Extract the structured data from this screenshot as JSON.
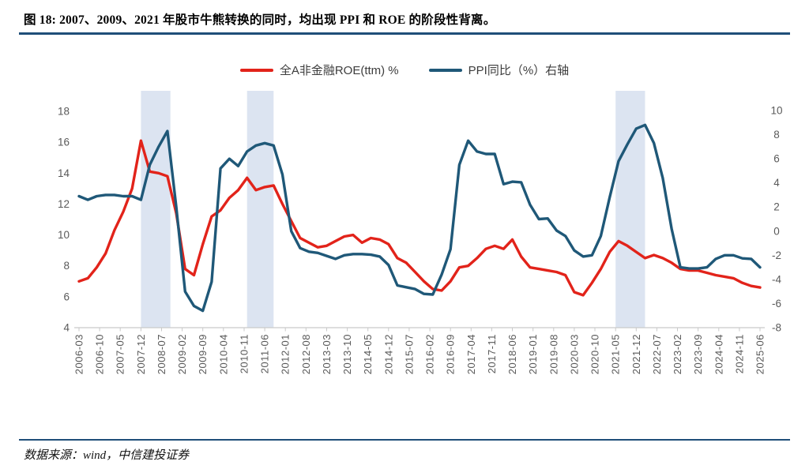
{
  "title": "图 18: 2007、2009、2021 年股市牛熊转换的同时，均出现 PPI 和 ROE 的阶段性背离。",
  "source": "数据来源：wind，中信建投证券",
  "colors": {
    "roe": "#e2231a",
    "ppi": "#1f5878",
    "band": "#dce4f1",
    "rule": "#1f4e79",
    "axis_text": "#595959",
    "axis_line": "#c9c9c9",
    "legend_text": "#3d3d3d"
  },
  "chart_data": {
    "type": "line",
    "title": "",
    "grid": false,
    "legend_position": "top-center",
    "left_axis": {
      "min": 4,
      "max": 18,
      "step": 2,
      "ticks": [
        18,
        16,
        14,
        12,
        10,
        8,
        6,
        4
      ]
    },
    "right_axis": {
      "min": -8,
      "max": 10,
      "step": 2,
      "ticks": [
        10,
        8,
        6,
        4,
        2,
        0,
        -2,
        -4,
        -6,
        -8
      ]
    },
    "x_axis": {
      "start": "2006-03",
      "end": "2025-06",
      "tick_labels": [
        "2006-03",
        "2006-10",
        "2007-05",
        "2007-12",
        "2008-07",
        "2009-02",
        "2009-09",
        "2010-04",
        "2010-11",
        "2011-06",
        "2012-01",
        "2012-08",
        "2013-03",
        "2013-10",
        "2014-05",
        "2014-12",
        "2015-07",
        "2016-02",
        "2016-09",
        "2017-04",
        "2017-11",
        "2018-06",
        "2019-01",
        "2019-08",
        "2020-03",
        "2020-10",
        "2021-05",
        "2021-12",
        "2022-07",
        "2023-02",
        "2023-09",
        "2024-04",
        "2024-11",
        "2025-06"
      ]
    },
    "highlight_bands": [
      {
        "from": "2007-12",
        "to": "2008-10"
      },
      {
        "from": "2010-12",
        "to": "2011-09"
      },
      {
        "from": "2021-05",
        "to": "2022-03"
      }
    ],
    "series": [
      {
        "name": "全A非金融ROE(ttm) %",
        "axis": "left",
        "color_key": "roe",
        "start": "2006-03",
        "interval_months": 3,
        "values": [
          7.0,
          7.2,
          7.9,
          8.8,
          10.3,
          11.5,
          13.0,
          16.1,
          14.1,
          14.0,
          13.8,
          11.4,
          7.8,
          7.4,
          9.4,
          11.2,
          11.6,
          12.4,
          12.9,
          13.7,
          12.9,
          13.1,
          13.2,
          12.0,
          10.9,
          9.8,
          9.5,
          9.2,
          9.3,
          9.6,
          9.9,
          10.0,
          9.5,
          9.8,
          9.7,
          9.4,
          8.5,
          8.2,
          7.6,
          7.0,
          6.5,
          6.4,
          7.0,
          7.9,
          8.0,
          8.5,
          9.1,
          9.3,
          9.1,
          9.7,
          8.6,
          7.9,
          7.8,
          7.7,
          7.6,
          7.4,
          6.3,
          6.1,
          6.9,
          7.8,
          8.9,
          9.6,
          9.3,
          8.9,
          8.5,
          8.7,
          8.5,
          8.2,
          7.8,
          7.7,
          7.7,
          7.55,
          7.4,
          7.3,
          7.2,
          6.9,
          6.7,
          6.6
        ]
      },
      {
        "name": "PPI同比（%）右轴",
        "axis": "right",
        "color_key": "ppi",
        "start": "2006-03",
        "interval_months": 3,
        "values": [
          2.9,
          2.6,
          2.9,
          3.0,
          3.0,
          2.9,
          2.9,
          2.6,
          5.5,
          7.0,
          8.3,
          2.0,
          -5.0,
          -6.2,
          -6.6,
          -4.2,
          5.2,
          6.0,
          5.4,
          6.6,
          7.1,
          7.3,
          7.1,
          4.7,
          0.0,
          -1.4,
          -1.7,
          -1.8,
          -2.05,
          -2.3,
          -2.0,
          -1.9,
          -1.9,
          -1.95,
          -2.1,
          -2.8,
          -4.5,
          -4.65,
          -4.8,
          -5.2,
          -5.25,
          -3.6,
          -1.5,
          5.5,
          7.5,
          6.6,
          6.4,
          6.4,
          3.9,
          4.1,
          4.05,
          2.2,
          1.0,
          1.05,
          0.05,
          -0.4,
          -1.6,
          -2.1,
          -2.0,
          -0.4,
          2.8,
          5.8,
          7.2,
          8.5,
          8.8,
          7.3,
          4.4,
          0.2,
          -3.0,
          -3.1,
          -3.1,
          -3.0,
          -2.3,
          -2.0,
          -2.0,
          -2.25,
          -2.3,
          -3.0
        ]
      }
    ]
  }
}
